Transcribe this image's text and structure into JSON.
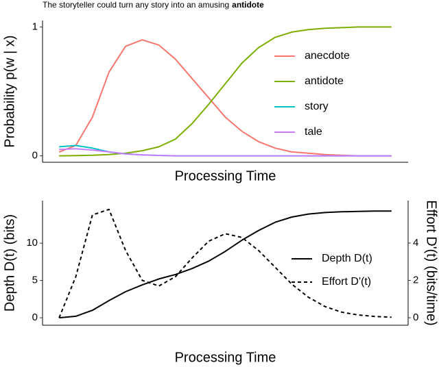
{
  "chart_data": [
    {
      "type": "line",
      "title": [
        "The storyteller could turn any story into an amusing",
        "antidote"
      ],
      "xlabel": "Processing Time",
      "ylabel": "Probability p(w | x)",
      "x": [
        0,
        1,
        2,
        3,
        4,
        5,
        6,
        7,
        8,
        9,
        10,
        11,
        12,
        13,
        14,
        15,
        16,
        17,
        18,
        19,
        20
      ],
      "xlim": [
        -1,
        21
      ],
      "ylim": [
        -0.05,
        1.05
      ],
      "yticks": [
        0,
        1
      ],
      "series": [
        {
          "name": "anecdote",
          "color": "#F8766D",
          "style": "solid",
          "values": [
            0.03,
            0.08,
            0.3,
            0.65,
            0.85,
            0.9,
            0.86,
            0.75,
            0.6,
            0.45,
            0.3,
            0.19,
            0.11,
            0.06,
            0.03,
            0.02,
            0.01,
            0.005,
            0,
            0,
            0
          ]
        },
        {
          "name": "antidote",
          "color": "#7CAE00",
          "style": "solid",
          "values": [
            0,
            0.002,
            0.005,
            0.01,
            0.02,
            0.04,
            0.07,
            0.13,
            0.25,
            0.4,
            0.56,
            0.72,
            0.84,
            0.92,
            0.96,
            0.98,
            0.99,
            0.995,
            1,
            1,
            1
          ]
        },
        {
          "name": "story",
          "color": "#00BFC4",
          "style": "solid",
          "values": [
            0.07,
            0.08,
            0.06,
            0.03,
            0.015,
            0.007,
            0.003,
            0,
            0,
            0,
            0,
            0,
            0,
            0,
            0,
            0,
            0,
            0,
            0,
            0,
            0
          ]
        },
        {
          "name": "tale",
          "color": "#C77CFF",
          "style": "solid",
          "values": [
            0.05,
            0.055,
            0.045,
            0.03,
            0.015,
            0.007,
            0.003,
            0,
            0,
            0,
            0,
            0,
            0,
            0,
            0,
            0,
            0,
            0,
            0,
            0,
            0
          ]
        }
      ]
    },
    {
      "type": "line",
      "xlabel": "Processing Time",
      "ylabel": "Depth D(t) (bits)",
      "y2label": "Effort D'(t) (bits/time)",
      "x": [
        0,
        1,
        2,
        3,
        4,
        5,
        6,
        7,
        8,
        9,
        10,
        11,
        12,
        13,
        14,
        15,
        16,
        17,
        18,
        19,
        20
      ],
      "xlim": [
        -1,
        21
      ],
      "ylim": [
        -1,
        15.7
      ],
      "yticks": [
        0,
        5,
        10
      ],
      "y2lim": [
        -0.4,
        6.27
      ],
      "y2ticks": [
        0,
        2,
        4
      ],
      "series": [
        {
          "name": "Depth D(t)",
          "color": "#000000",
          "style": "solid",
          "values": [
            0,
            0.2,
            1.0,
            2.3,
            3.5,
            4.4,
            5.2,
            5.8,
            6.6,
            7.6,
            8.9,
            10.4,
            11.7,
            12.8,
            13.5,
            13.9,
            14.1,
            14.2,
            14.25,
            14.3,
            14.3
          ]
        },
        {
          "name": "Effort D'(t)",
          "color": "#000000",
          "style": "dashed",
          "axis": "y2",
          "values": [
            0,
            2.2,
            5.5,
            5.8,
            3.6,
            2.0,
            1.7,
            2.2,
            3.2,
            4.1,
            4.5,
            4.3,
            3.6,
            2.7,
            1.8,
            1.1,
            0.6,
            0.3,
            0.15,
            0.07,
            0.03
          ]
        }
      ]
    }
  ]
}
